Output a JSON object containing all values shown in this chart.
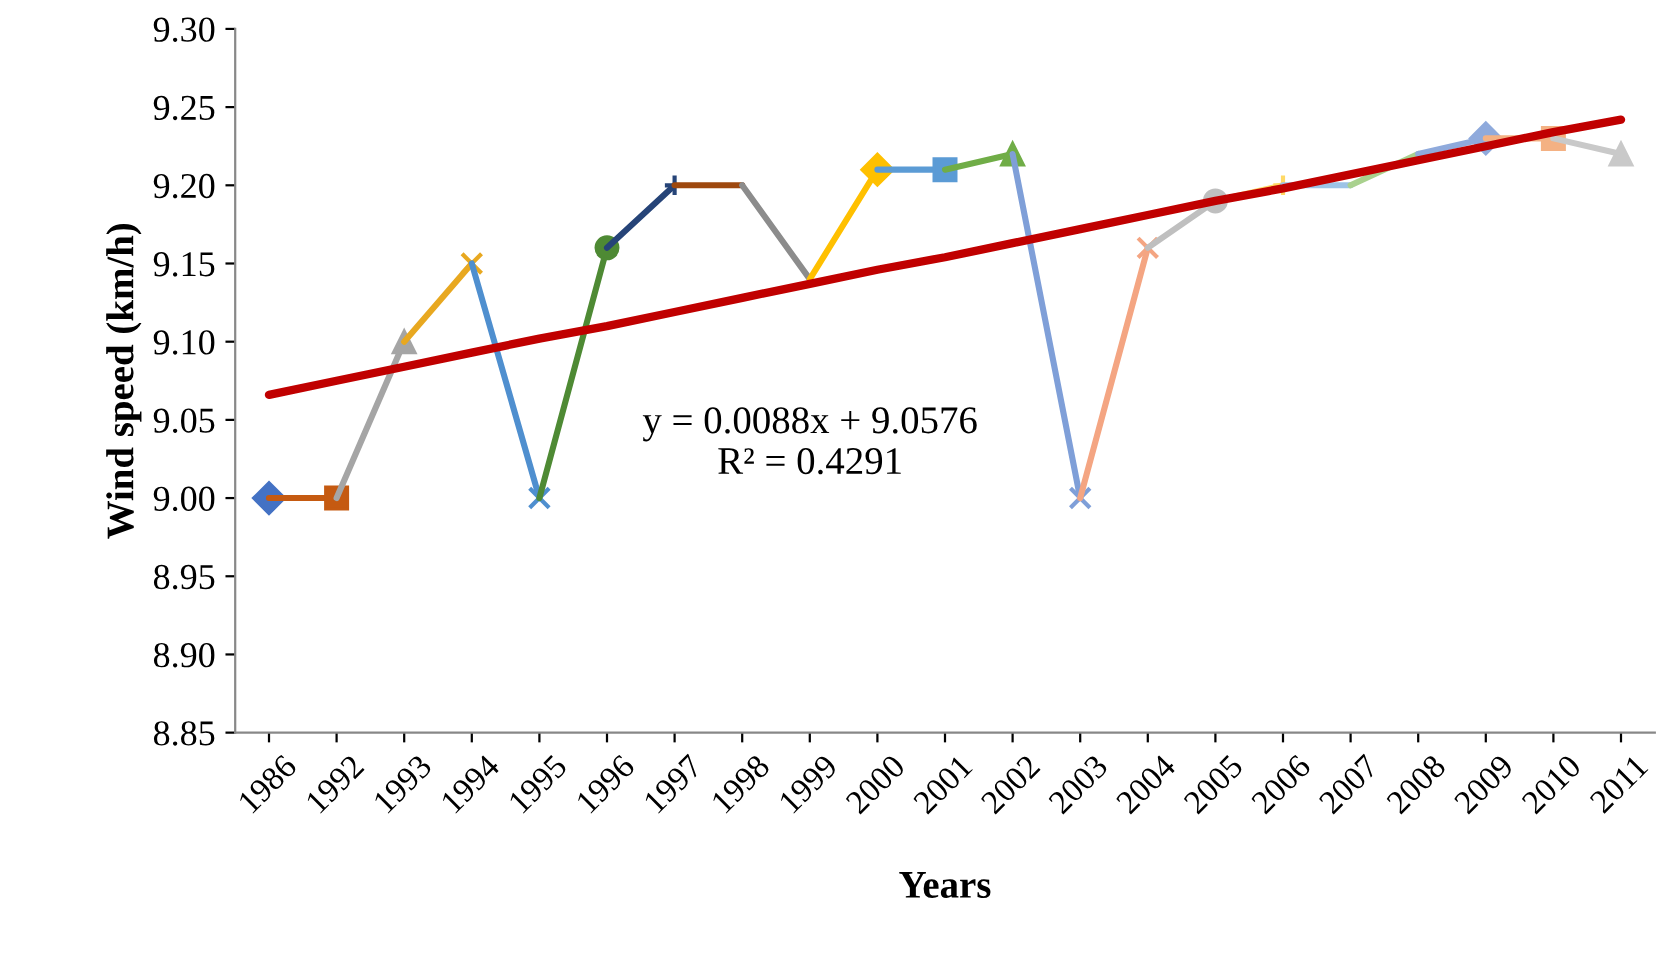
{
  "chart_data": {
    "type": "line",
    "xlabel": "Years",
    "ylabel": "Wind speed (km/h)",
    "categories": [
      "1986",
      "1992",
      "1993",
      "1994",
      "1995",
      "1996",
      "1997",
      "1998",
      "1999",
      "2000",
      "2001",
      "2002",
      "2003",
      "2004",
      "2005",
      "2006",
      "2007",
      "2008",
      "2009",
      "2010",
      "2011"
    ],
    "series": [
      {
        "color": "#4472c4",
        "marker": "diamond",
        "values": [
          9.0,
          null,
          null,
          null,
          null,
          null,
          null,
          null,
          null,
          null,
          null,
          null,
          null,
          null,
          null,
          null,
          null,
          null,
          null,
          null,
          null
        ]
      },
      {
        "color": "#c55a11",
        "marker": "square",
        "values": [
          9.0,
          9.0,
          null,
          null,
          null,
          null,
          null,
          null,
          null,
          null,
          null,
          null,
          null,
          null,
          null,
          null,
          null,
          null,
          null,
          null,
          null
        ]
      },
      {
        "color": "#a5a5a5",
        "marker": "triangle",
        "values": [
          null,
          9.0,
          9.1,
          null,
          null,
          null,
          null,
          null,
          null,
          null,
          null,
          null,
          null,
          null,
          null,
          null,
          null,
          null,
          null,
          null,
          null
        ]
      },
      {
        "color": "#e8a820",
        "marker": "cross",
        "values": [
          null,
          null,
          9.1,
          9.15,
          null,
          null,
          null,
          null,
          null,
          null,
          null,
          null,
          null,
          null,
          null,
          null,
          null,
          null,
          null,
          null,
          null
        ]
      },
      {
        "color": "#4f8fcf",
        "marker": "cross",
        "values": [
          null,
          null,
          null,
          9.15,
          9.0,
          null,
          null,
          null,
          null,
          null,
          null,
          null,
          null,
          null,
          null,
          null,
          null,
          null,
          null,
          null,
          null
        ]
      },
      {
        "color": "#4e8a34",
        "marker": "circle",
        "values": [
          null,
          null,
          null,
          null,
          9.0,
          9.16,
          null,
          null,
          null,
          null,
          null,
          null,
          null,
          null,
          null,
          null,
          null,
          null,
          null,
          null,
          null
        ]
      },
      {
        "color": "#264478",
        "marker": "plus",
        "values": [
          null,
          null,
          null,
          null,
          null,
          9.16,
          9.2,
          null,
          null,
          null,
          null,
          null,
          null,
          null,
          null,
          null,
          null,
          null,
          null,
          null,
          null
        ]
      },
      {
        "color": "#9e480e",
        "marker": "none",
        "values": [
          null,
          null,
          null,
          null,
          null,
          null,
          9.2,
          9.2,
          null,
          null,
          null,
          null,
          null,
          null,
          null,
          null,
          null,
          null,
          null,
          null,
          null
        ]
      },
      {
        "color": "#8c8c8c",
        "marker": "none",
        "values": [
          null,
          null,
          null,
          null,
          null,
          null,
          null,
          9.2,
          9.14,
          null,
          null,
          null,
          null,
          null,
          null,
          null,
          null,
          null,
          null,
          null,
          null
        ]
      },
      {
        "color": "#ffc000",
        "marker": "diamond",
        "values": [
          null,
          null,
          null,
          null,
          null,
          null,
          null,
          null,
          9.14,
          9.21,
          null,
          null,
          null,
          null,
          null,
          null,
          null,
          null,
          null,
          null,
          null
        ]
      },
      {
        "color": "#5b9bd5",
        "marker": "square",
        "values": [
          null,
          null,
          null,
          null,
          null,
          null,
          null,
          null,
          null,
          9.21,
          9.21,
          null,
          null,
          null,
          null,
          null,
          null,
          null,
          null,
          null,
          null
        ]
      },
      {
        "color": "#70ad47",
        "marker": "triangle",
        "values": [
          null,
          null,
          null,
          null,
          null,
          null,
          null,
          null,
          null,
          null,
          9.21,
          9.22,
          null,
          null,
          null,
          null,
          null,
          null,
          null,
          null,
          null
        ]
      },
      {
        "color": "#7f9fd8",
        "marker": "cross",
        "values": [
          null,
          null,
          null,
          null,
          null,
          null,
          null,
          null,
          null,
          null,
          null,
          9.22,
          9.0,
          null,
          null,
          null,
          null,
          null,
          null,
          null,
          null
        ]
      },
      {
        "color": "#f4a582",
        "marker": "cross",
        "values": [
          null,
          null,
          null,
          null,
          null,
          null,
          null,
          null,
          null,
          null,
          null,
          null,
          9.0,
          9.16,
          null,
          null,
          null,
          null,
          null,
          null,
          null
        ]
      },
      {
        "color": "#bfbfbf",
        "marker": "circle",
        "values": [
          null,
          null,
          null,
          null,
          null,
          null,
          null,
          null,
          null,
          null,
          null,
          null,
          null,
          9.16,
          9.19,
          null,
          null,
          null,
          null,
          null,
          null
        ]
      },
      {
        "color": "#ffd966",
        "marker": "plus",
        "values": [
          null,
          null,
          null,
          null,
          null,
          null,
          null,
          null,
          null,
          null,
          null,
          null,
          null,
          null,
          9.19,
          9.2,
          null,
          null,
          null,
          null,
          null
        ]
      },
      {
        "color": "#9dc3e6",
        "marker": "none",
        "values": [
          null,
          null,
          null,
          null,
          null,
          null,
          null,
          null,
          null,
          null,
          null,
          null,
          null,
          null,
          null,
          9.2,
          9.2,
          null,
          null,
          null,
          null
        ]
      },
      {
        "color": "#a9d18e",
        "marker": "none",
        "values": [
          null,
          null,
          null,
          null,
          null,
          null,
          null,
          null,
          null,
          null,
          null,
          null,
          null,
          null,
          null,
          null,
          9.2,
          9.22,
          null,
          null,
          null
        ]
      },
      {
        "color": "#8faadc",
        "marker": "diamond",
        "values": [
          null,
          null,
          null,
          null,
          null,
          null,
          null,
          null,
          null,
          null,
          null,
          null,
          null,
          null,
          null,
          null,
          null,
          9.22,
          9.23,
          null,
          null
        ]
      },
      {
        "color": "#f4b183",
        "marker": "square",
        "values": [
          null,
          null,
          null,
          null,
          null,
          null,
          null,
          null,
          null,
          null,
          null,
          null,
          null,
          null,
          null,
          null,
          null,
          null,
          9.23,
          9.23,
          null
        ]
      },
      {
        "color": "#c9c9c9",
        "marker": "triangle",
        "values": [
          null,
          null,
          null,
          null,
          null,
          null,
          null,
          null,
          null,
          null,
          null,
          null,
          null,
          null,
          null,
          null,
          null,
          null,
          null,
          9.23,
          9.22
        ]
      },
      {
        "color": "#c00000",
        "marker": "none",
        "values": [
          9.066,
          9.075,
          9.084,
          9.093,
          9.102,
          9.11,
          9.119,
          9.128,
          9.137,
          9.146,
          9.154,
          9.163,
          9.172,
          9.181,
          9.19,
          9.198,
          9.207,
          9.216,
          9.225,
          9.234,
          9.242
        ]
      }
    ],
    "ylim": [
      8.85,
      9.3
    ],
    "yticks": [
      {
        "value": 8.85,
        "label": "8.85"
      },
      {
        "value": 8.9,
        "label": "8.90"
      },
      {
        "value": 8.95,
        "label": "8.95"
      },
      {
        "value": 9.0,
        "label": "9.00"
      },
      {
        "value": 9.05,
        "label": "9.05"
      },
      {
        "value": 9.1,
        "label": "9.10"
      },
      {
        "value": 9.15,
        "label": "9.15"
      },
      {
        "value": 9.2,
        "label": "9.20"
      },
      {
        "value": 9.25,
        "label": "9.25"
      },
      {
        "value": 9.3,
        "label": "9.30"
      }
    ],
    "annotations": [
      "y = 0.0088x + 9.0576\nR² = 0.4291"
    ],
    "grid": false,
    "legend": false
  }
}
